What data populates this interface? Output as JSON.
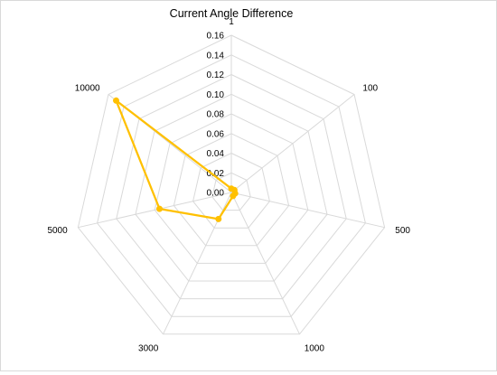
{
  "chart_data": {
    "type": "radar",
    "title": "Current Angle Difference",
    "categories": [
      "1",
      "100",
      "500",
      "1000",
      "3000",
      "5000",
      "10000"
    ],
    "radial_ticks": [
      "0.00",
      "0.02",
      "0.04",
      "0.06",
      "0.08",
      "0.10",
      "0.12",
      "0.14",
      "0.16"
    ],
    "rlim": [
      0,
      0.16
    ],
    "grid": true,
    "series": [
      {
        "values": [
          0.004,
          0.004,
          0.004,
          0.004,
          0.03,
          0.075,
          0.15
        ],
        "color": "#FFC000"
      }
    ]
  }
}
